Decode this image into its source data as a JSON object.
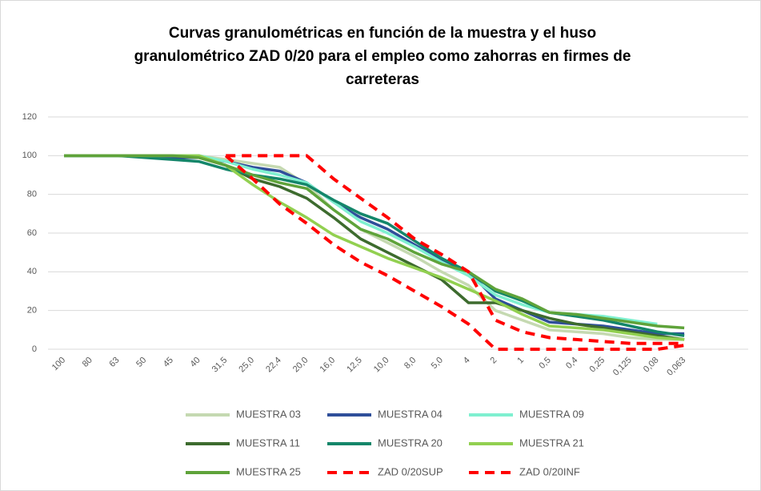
{
  "chart_data": {
    "type": "line",
    "title": [
      "Curvas granulométricas en función de la muestra y el huso",
      "granulométrico ZAD 0/20  para el empleo como zahorras  en firmes de",
      "carreteras"
    ],
    "categories": [
      "100",
      "80",
      "63",
      "50",
      "45",
      "40",
      "31,5",
      "25,0",
      "22,4",
      "20,0",
      "16,0",
      "12,5",
      "10,0",
      "8,0",
      "5,0",
      "4",
      "2",
      "1",
      "0,5",
      "0,4",
      "0,25",
      "0,125",
      "0,08",
      "0,063"
    ],
    "ylim": [
      0,
      120
    ],
    "yticks": [
      0,
      20,
      40,
      60,
      80,
      100,
      120
    ],
    "grid": true,
    "series": [
      {
        "name": "MUESTRA 03",
        "color": "#c5d9b1",
        "dash": false,
        "values": [
          100,
          100,
          100,
          100,
          100,
          100,
          98,
          96,
          94,
          85,
          72,
          62,
          55,
          48,
          40,
          33,
          20,
          15,
          10,
          9,
          8,
          6,
          5,
          5
        ]
      },
      {
        "name": "MUESTRA 04",
        "color": "#2f4f9a",
        "dash": false,
        "values": [
          100,
          100,
          100,
          100,
          99,
          99,
          97,
          94,
          92,
          86,
          76,
          68,
          62,
          54,
          46,
          40,
          26,
          20,
          14,
          13,
          12,
          10,
          8,
          8
        ]
      },
      {
        "name": "MUESTRA 09",
        "color": "#7ff0d0",
        "dash": false,
        "values": [
          100,
          100,
          100,
          100,
          100,
          100,
          97,
          93,
          90,
          86,
          76,
          66,
          60,
          53,
          45,
          38,
          28,
          23,
          19,
          18,
          17,
          15,
          13,
          null
        ]
      },
      {
        "name": "MUESTRA 11",
        "color": "#3d6b2e",
        "dash": false,
        "values": [
          100,
          100,
          100,
          100,
          100,
          99,
          95,
          88,
          84,
          78,
          68,
          57,
          50,
          43,
          36,
          24,
          24,
          20,
          16,
          13,
          11,
          9,
          7,
          5
        ]
      },
      {
        "name": "MUESTRA 20",
        "color": "#14866a",
        "dash": false,
        "values": [
          100,
          100,
          100,
          99,
          98,
          97,
          93,
          90,
          88,
          85,
          77,
          70,
          65,
          56,
          47,
          40,
          30,
          25,
          19,
          17,
          15,
          12,
          9,
          7
        ]
      },
      {
        "name": "MUESTRA 21",
        "color": "#92d050",
        "dash": false,
        "values": [
          100,
          100,
          100,
          100,
          100,
          100,
          95,
          85,
          76,
          68,
          59,
          53,
          47,
          42,
          37,
          31,
          25,
          18,
          12,
          11,
          10,
          8,
          6,
          5
        ]
      },
      {
        "name": "MUESTRA 25",
        "color": "#5fa33a",
        "dash": false,
        "values": [
          100,
          100,
          100,
          100,
          100,
          99,
          95,
          90,
          86,
          83,
          72,
          62,
          57,
          50,
          44,
          40,
          31,
          26,
          19,
          18,
          16,
          14,
          12,
          11
        ]
      },
      {
        "name": "ZAD 0/20SUP",
        "color": "#ff0000",
        "dash": true,
        "values": [
          null,
          null,
          null,
          null,
          null,
          null,
          100,
          100,
          100,
          100,
          88,
          78,
          68,
          57,
          49,
          40,
          15,
          9,
          6,
          5,
          4,
          3,
          3,
          3
        ]
      },
      {
        "name": "ZAD 0/20INF",
        "color": "#ff0000",
        "dash": true,
        "values": [
          null,
          null,
          null,
          null,
          null,
          null,
          100,
          88,
          75,
          65,
          54,
          45,
          38,
          30,
          22,
          13,
          0,
          0,
          0,
          0,
          0,
          0,
          0,
          2
        ]
      }
    ]
  }
}
